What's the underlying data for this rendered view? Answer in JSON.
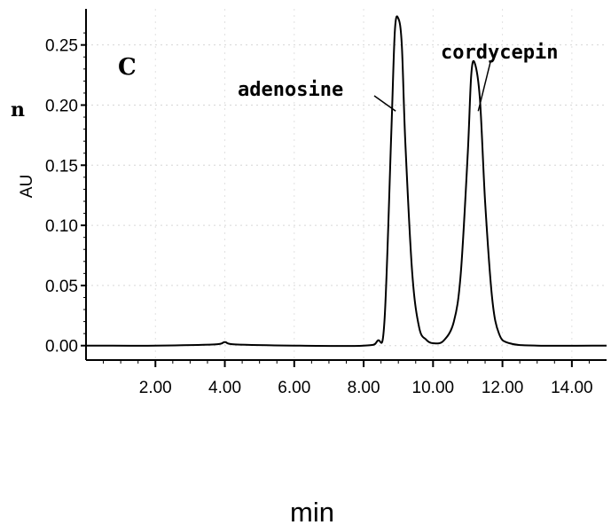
{
  "chart_data": {
    "type": "line",
    "panel_label": "C",
    "left_fragment": "n",
    "ylabel": "AU",
    "xlabel": "min",
    "xlim": [
      0.0,
      15.0
    ],
    "ylim": [
      -0.012,
      0.28
    ],
    "xticks": [
      "2.00",
      "4.00",
      "6.00",
      "8.00",
      "10.00",
      "12.00",
      "14.00"
    ],
    "xtick_values": [
      2,
      4,
      6,
      8,
      10,
      12,
      14
    ],
    "yticks": [
      "0.00",
      "0.05",
      "0.10",
      "0.15",
      "0.20",
      "0.25"
    ],
    "ytick_values": [
      0.0,
      0.05,
      0.1,
      0.15,
      0.2,
      0.25
    ],
    "peaks": [
      {
        "label": "adenosine",
        "x": 9.0,
        "height": 0.272,
        "width": 0.22
      },
      {
        "label": "cordycepin",
        "x": 11.2,
        "height": 0.235,
        "width": 0.25
      }
    ],
    "series": [
      {
        "x": [
          0.0,
          2.0,
          3.7,
          4.0,
          4.3,
          6.0,
          8.0,
          8.4,
          8.6,
          8.8,
          8.9,
          9.0,
          9.1,
          9.2,
          9.4,
          9.6,
          9.8,
          10.0,
          10.3,
          10.6,
          10.8,
          11.0,
          11.1,
          11.2,
          11.35,
          11.5,
          11.7,
          11.9,
          12.2,
          13.0,
          15.0
        ],
        "y": [
          0.0,
          0.0,
          0.001,
          0.003,
          0.001,
          0.0,
          0.0,
          0.004,
          0.02,
          0.18,
          0.262,
          0.272,
          0.25,
          0.17,
          0.06,
          0.015,
          0.005,
          0.002,
          0.004,
          0.02,
          0.06,
          0.16,
          0.225,
          0.235,
          0.205,
          0.12,
          0.04,
          0.01,
          0.002,
          0.0,
          0.0
        ]
      }
    ]
  }
}
